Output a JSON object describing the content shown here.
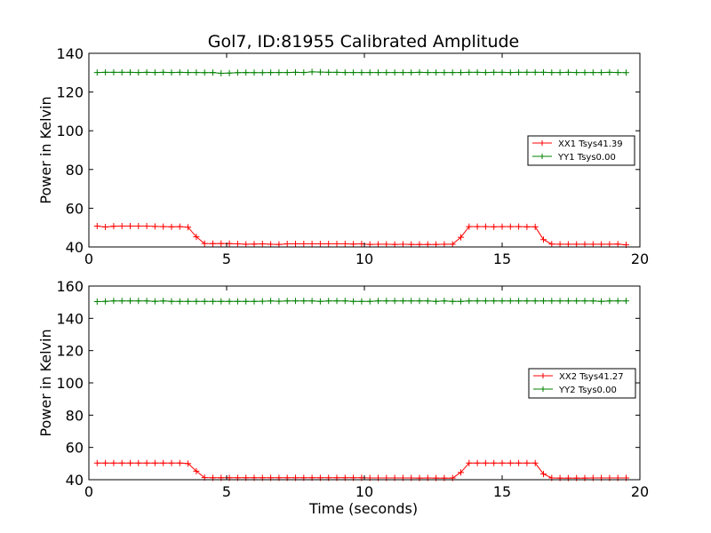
{
  "figure": {
    "title": "Gol7, ID:81955 Calibrated Amplitude",
    "xlabel": "Time (seconds)"
  },
  "colors": {
    "xx": "#ff0000",
    "yy": "#008000",
    "axis": "#000000"
  },
  "chart_data": [
    {
      "type": "line",
      "title": "Gol7, ID:81955 Calibrated Amplitude",
      "xlabel": "",
      "ylabel": "Power in Kelvin",
      "xlim": [
        0,
        20
      ],
      "ylim": [
        40,
        140
      ],
      "xticks": [
        "0",
        "5",
        "10",
        "15",
        "20"
      ],
      "yticks": [
        "40",
        "60",
        "80",
        "100",
        "120",
        "140"
      ],
      "grid": false,
      "legend_position": "center-right",
      "series": [
        {
          "name": "XX1 Tsys41.39",
          "color": "#ff0000",
          "marker": "+",
          "x": [
            0.3,
            0.6,
            0.9,
            1.2,
            1.5,
            1.8,
            2.1,
            2.4,
            2.7,
            3.0,
            3.3,
            3.6,
            3.9,
            4.2,
            4.5,
            4.8,
            5.1,
            5.4,
            5.7,
            6.0,
            6.3,
            6.6,
            6.9,
            7.2,
            7.5,
            7.8,
            8.1,
            8.4,
            8.7,
            9.0,
            9.3,
            9.6,
            9.9,
            10.2,
            10.5,
            10.8,
            11.1,
            11.4,
            11.7,
            12.0,
            12.3,
            12.6,
            12.9,
            13.2,
            13.5,
            13.8,
            14.1,
            14.4,
            14.7,
            15.0,
            15.3,
            15.6,
            15.9,
            16.2,
            16.5,
            16.8,
            17.1,
            17.4,
            17.7,
            18.0,
            18.3,
            18.6,
            18.9,
            19.2,
            19.5
          ],
          "y": [
            50.8,
            50.3,
            50.7,
            50.8,
            50.8,
            50.8,
            50.8,
            50.6,
            50.5,
            50.4,
            50.5,
            50.2,
            45.2,
            41.8,
            41.7,
            41.8,
            41.7,
            41.6,
            41.4,
            41.5,
            41.6,
            41.4,
            41.3,
            41.6,
            41.6,
            41.6,
            41.6,
            41.6,
            41.6,
            41.6,
            41.6,
            41.5,
            41.6,
            41.3,
            41.4,
            41.4,
            41.3,
            41.4,
            41.3,
            41.3,
            41.3,
            41.3,
            41.4,
            41.4,
            45.0,
            50.5,
            50.5,
            50.5,
            50.4,
            50.5,
            50.5,
            50.5,
            50.4,
            50.4,
            43.8,
            41.5,
            41.4,
            41.4,
            41.4,
            41.4,
            41.4,
            41.4,
            41.4,
            41.5,
            41.1
          ]
        },
        {
          "name": "YY1 Tsys0.00",
          "color": "#008000",
          "marker": "+",
          "x": [
            0.3,
            0.6,
            0.9,
            1.2,
            1.5,
            1.8,
            2.1,
            2.4,
            2.7,
            3.0,
            3.3,
            3.6,
            3.9,
            4.2,
            4.5,
            4.8,
            5.1,
            5.4,
            5.7,
            6.0,
            6.3,
            6.6,
            6.9,
            7.2,
            7.5,
            7.8,
            8.1,
            8.4,
            8.7,
            9.0,
            9.3,
            9.6,
            9.9,
            10.2,
            10.5,
            10.8,
            11.1,
            11.4,
            11.7,
            12.0,
            12.3,
            12.6,
            12.9,
            13.2,
            13.5,
            13.8,
            14.1,
            14.4,
            14.7,
            15.0,
            15.3,
            15.6,
            15.9,
            16.2,
            16.5,
            16.8,
            17.1,
            17.4,
            17.7,
            18.0,
            18.3,
            18.6,
            18.9,
            19.2,
            19.5
          ],
          "y": [
            130.1,
            130.2,
            130.2,
            130.2,
            130.2,
            130.1,
            130.2,
            130.1,
            130.2,
            130.1,
            130.2,
            130.1,
            130.1,
            130.0,
            130.1,
            129.7,
            129.8,
            130.0,
            130.1,
            130.0,
            130.0,
            130.1,
            130.1,
            130.1,
            130.2,
            130.1,
            130.4,
            130.3,
            130.2,
            130.2,
            130.1,
            130.1,
            130.1,
            130.1,
            130.1,
            130.1,
            130.1,
            130.1,
            130.1,
            130.2,
            130.1,
            130.1,
            130.1,
            130.1,
            130.1,
            130.2,
            130.2,
            130.1,
            130.2,
            130.2,
            130.1,
            130.2,
            130.2,
            130.2,
            130.2,
            130.1,
            130.1,
            130.2,
            130.1,
            130.1,
            130.1,
            130.1,
            130.2,
            130.1,
            130.0
          ]
        }
      ]
    },
    {
      "type": "line",
      "title": "",
      "xlabel": "Time (seconds)",
      "ylabel": "Power in Kelvin",
      "xlim": [
        0,
        20
      ],
      "ylim": [
        40,
        160
      ],
      "xticks": [
        "0",
        "5",
        "10",
        "15",
        "20"
      ],
      "yticks": [
        "40",
        "60",
        "80",
        "100",
        "120",
        "140",
        "160"
      ],
      "grid": false,
      "legend_position": "center-right",
      "series": [
        {
          "name": "XX2 Tsys41.27",
          "color": "#ff0000",
          "marker": "+",
          "x": [
            0.3,
            0.6,
            0.9,
            1.2,
            1.5,
            1.8,
            2.1,
            2.4,
            2.7,
            3.0,
            3.3,
            3.6,
            3.9,
            4.2,
            4.5,
            4.8,
            5.1,
            5.4,
            5.7,
            6.0,
            6.3,
            6.6,
            6.9,
            7.2,
            7.5,
            7.8,
            8.1,
            8.4,
            8.7,
            9.0,
            9.3,
            9.6,
            9.9,
            10.2,
            10.5,
            10.8,
            11.1,
            11.4,
            11.7,
            12.0,
            12.3,
            12.6,
            12.9,
            13.2,
            13.5,
            13.8,
            14.1,
            14.4,
            14.7,
            15.0,
            15.3,
            15.6,
            15.9,
            16.2,
            16.5,
            16.8,
            17.1,
            17.4,
            17.7,
            18.0,
            18.3,
            18.6,
            18.9,
            19.2,
            19.5
          ],
          "y": [
            50.3,
            50.3,
            50.3,
            50.3,
            50.3,
            50.3,
            50.3,
            50.3,
            50.3,
            50.3,
            50.3,
            50.0,
            45.3,
            41.3,
            41.2,
            41.2,
            41.2,
            41.2,
            41.2,
            41.2,
            41.2,
            41.2,
            41.2,
            41.2,
            41.2,
            41.2,
            41.2,
            41.2,
            41.2,
            41.2,
            41.2,
            41.2,
            41.2,
            41.1,
            41.1,
            41.1,
            41.1,
            41.1,
            41.1,
            41.0,
            41.1,
            41.0,
            41.0,
            41.0,
            44.5,
            50.3,
            50.3,
            50.3,
            50.3,
            50.3,
            50.3,
            50.3,
            50.3,
            50.3,
            43.5,
            41.1,
            41.0,
            41.0,
            41.0,
            41.0,
            41.1,
            41.1,
            41.1,
            41.1,
            41.1
          ]
        },
        {
          "name": "YY2 Tsys0.00",
          "color": "#008000",
          "marker": "+",
          "x": [
            0.3,
            0.6,
            0.9,
            1.2,
            1.5,
            1.8,
            2.1,
            2.4,
            2.7,
            3.0,
            3.3,
            3.6,
            3.9,
            4.2,
            4.5,
            4.8,
            5.1,
            5.4,
            5.7,
            6.0,
            6.3,
            6.6,
            6.9,
            7.2,
            7.5,
            7.8,
            8.1,
            8.4,
            8.7,
            9.0,
            9.3,
            9.6,
            9.9,
            10.2,
            10.5,
            10.8,
            11.1,
            11.4,
            11.7,
            12.0,
            12.3,
            12.6,
            12.9,
            13.2,
            13.5,
            13.8,
            14.1,
            14.4,
            14.7,
            15.0,
            15.3,
            15.6,
            15.9,
            16.2,
            16.5,
            16.8,
            17.1,
            17.4,
            17.7,
            18.0,
            18.3,
            18.6,
            18.9,
            19.2,
            19.5
          ],
          "y": [
            150.4,
            150.5,
            150.8,
            150.8,
            150.8,
            150.8,
            150.8,
            150.5,
            150.8,
            150.5,
            150.5,
            150.5,
            150.5,
            150.5,
            150.5,
            150.5,
            150.5,
            150.5,
            150.5,
            150.5,
            150.6,
            150.8,
            150.6,
            150.8,
            150.8,
            150.8,
            150.8,
            150.5,
            150.8,
            150.8,
            150.8,
            150.5,
            150.5,
            150.5,
            150.8,
            150.8,
            150.8,
            150.8,
            150.8,
            150.8,
            150.8,
            150.5,
            150.8,
            150.5,
            150.5,
            150.8,
            150.8,
            150.8,
            150.8,
            150.8,
            150.8,
            150.8,
            150.8,
            150.8,
            150.8,
            150.8,
            150.8,
            150.8,
            150.8,
            150.8,
            150.8,
            150.5,
            150.8,
            150.8,
            150.8
          ]
        }
      ]
    }
  ]
}
